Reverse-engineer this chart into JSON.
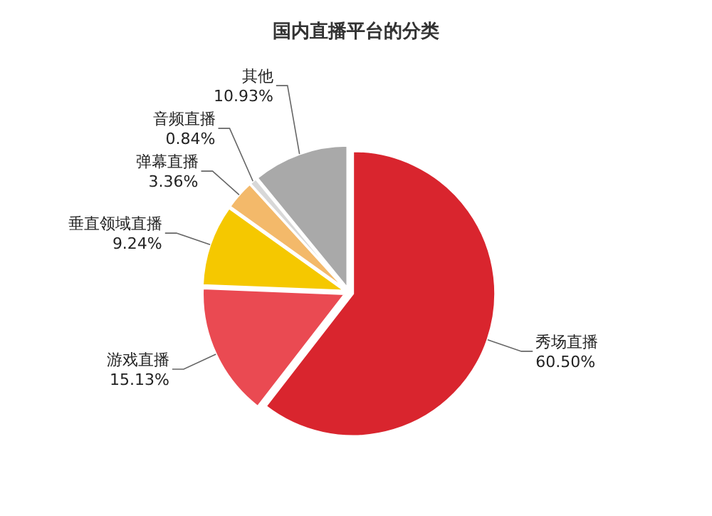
{
  "chart_data": {
    "type": "pie",
    "title": "国内直播平台的分类",
    "categories": [
      "秀场直播",
      "游戏直播",
      "垂直领域直播",
      "弹幕直播",
      "音频直播",
      "其他"
    ],
    "values": [
      60.5,
      15.13,
      9.24,
      3.36,
      0.84,
      10.93
    ],
    "value_labels": [
      "60.50%",
      "15.13%",
      "9.24%",
      "3.36%",
      "0.84%",
      "10.93%"
    ],
    "colors": [
      "#d9252e",
      "#ea4a52",
      "#f5c800",
      "#f3b96a",
      "#d8d8d8",
      "#a9a9a9"
    ]
  }
}
